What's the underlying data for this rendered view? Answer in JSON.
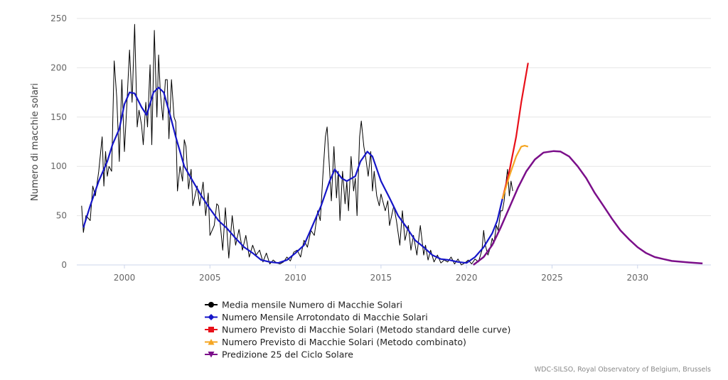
{
  "chart_data": {
    "type": "line",
    "title": "",
    "xlabel": "",
    "ylabel": "Numero di macchie solari",
    "xlim": [
      1997,
      2034.5
    ],
    "ylim": [
      0,
      250
    ],
    "x_ticks": [
      "2000",
      "2005",
      "2010",
      "2015",
      "2020",
      "2025",
      "2030"
    ],
    "y_ticks": [
      "0",
      "50",
      "100",
      "150",
      "200",
      "250"
    ],
    "grid": true,
    "legend_position": "bottom",
    "series": [
      {
        "name": "Media mensile Numero di Macchie Solari",
        "color": "#000000",
        "marker": "circle",
        "width": 1,
        "points": [
          [
            1997.5,
            60
          ],
          [
            1997.6,
            33
          ],
          [
            1997.75,
            50
          ],
          [
            1998,
            45
          ],
          [
            1998.15,
            80
          ],
          [
            1998.3,
            70
          ],
          [
            1998.5,
            95
          ],
          [
            1998.7,
            130
          ],
          [
            1998.8,
            80
          ],
          [
            1998.9,
            115
          ],
          [
            1999,
            90
          ],
          [
            1999.1,
            100
          ],
          [
            1999.25,
            95
          ],
          [
            1999.4,
            207
          ],
          [
            1999.55,
            170
          ],
          [
            1999.7,
            105
          ],
          [
            1999.85,
            188
          ],
          [
            2000,
            115
          ],
          [
            2000.15,
            165
          ],
          [
            2000.3,
            218
          ],
          [
            2000.45,
            165
          ],
          [
            2000.6,
            244
          ],
          [
            2000.75,
            140
          ],
          [
            2000.85,
            157
          ],
          [
            2001,
            142
          ],
          [
            2001.1,
            122
          ],
          [
            2001.25,
            165
          ],
          [
            2001.35,
            140
          ],
          [
            2001.5,
            203
          ],
          [
            2001.6,
            122
          ],
          [
            2001.75,
            238
          ],
          [
            2001.9,
            150
          ],
          [
            2002,
            213
          ],
          [
            2002.1,
            175
          ],
          [
            2002.25,
            147
          ],
          [
            2002.4,
            188
          ],
          [
            2002.5,
            188
          ],
          [
            2002.6,
            128
          ],
          [
            2002.75,
            188
          ],
          [
            2002.9,
            150
          ],
          [
            2003,
            145
          ],
          [
            2003.1,
            75
          ],
          [
            2003.25,
            100
          ],
          [
            2003.4,
            85
          ],
          [
            2003.5,
            127
          ],
          [
            2003.6,
            120
          ],
          [
            2003.75,
            77
          ],
          [
            2003.9,
            97
          ],
          [
            2004,
            60
          ],
          [
            2004.25,
            80
          ],
          [
            2004.4,
            60
          ],
          [
            2004.6,
            84
          ],
          [
            2004.75,
            50
          ],
          [
            2004.9,
            73
          ],
          [
            2005,
            30
          ],
          [
            2005.25,
            40
          ],
          [
            2005.4,
            62
          ],
          [
            2005.5,
            60
          ],
          [
            2005.75,
            15
          ],
          [
            2005.9,
            58
          ],
          [
            2006.1,
            7
          ],
          [
            2006.3,
            50
          ],
          [
            2006.5,
            20
          ],
          [
            2006.7,
            36
          ],
          [
            2006.9,
            15
          ],
          [
            2007.1,
            30
          ],
          [
            2007.3,
            8
          ],
          [
            2007.5,
            20
          ],
          [
            2007.7,
            10
          ],
          [
            2007.9,
            15
          ],
          [
            2008.1,
            3
          ],
          [
            2008.3,
            12
          ],
          [
            2008.5,
            1
          ],
          [
            2008.7,
            5
          ],
          [
            2008.9,
            2
          ],
          [
            2009.1,
            1
          ],
          [
            2009.3,
            3
          ],
          [
            2009.5,
            8
          ],
          [
            2009.7,
            4
          ],
          [
            2009.9,
            13
          ],
          [
            2010.1,
            15
          ],
          [
            2010.3,
            8
          ],
          [
            2010.5,
            25
          ],
          [
            2010.7,
            18
          ],
          [
            2010.9,
            35
          ],
          [
            2011.1,
            30
          ],
          [
            2011.3,
            55
          ],
          [
            2011.45,
            45
          ],
          [
            2011.6,
            90
          ],
          [
            2011.75,
            130
          ],
          [
            2011.85,
            140
          ],
          [
            2012,
            95
          ],
          [
            2012.1,
            65
          ],
          [
            2012.25,
            120
          ],
          [
            2012.4,
            68
          ],
          [
            2012.5,
            95
          ],
          [
            2012.6,
            45
          ],
          [
            2012.75,
            95
          ],
          [
            2012.9,
            62
          ],
          [
            2013,
            85
          ],
          [
            2013.1,
            55
          ],
          [
            2013.25,
            110
          ],
          [
            2013.4,
            75
          ],
          [
            2013.5,
            88
          ],
          [
            2013.6,
            50
          ],
          [
            2013.75,
            130
          ],
          [
            2013.85,
            146
          ],
          [
            2014,
            120
          ],
          [
            2014.1,
            110
          ],
          [
            2014.25,
            90
          ],
          [
            2014.4,
            115
          ],
          [
            2014.5,
            75
          ],
          [
            2014.6,
            95
          ],
          [
            2014.75,
            70
          ],
          [
            2014.9,
            60
          ],
          [
            2015,
            72
          ],
          [
            2015.25,
            55
          ],
          [
            2015.4,
            65
          ],
          [
            2015.5,
            40
          ],
          [
            2015.75,
            60
          ],
          [
            2015.9,
            45
          ],
          [
            2016.1,
            20
          ],
          [
            2016.25,
            55
          ],
          [
            2016.4,
            25
          ],
          [
            2016.6,
            40
          ],
          [
            2016.75,
            15
          ],
          [
            2016.9,
            30
          ],
          [
            2017.1,
            10
          ],
          [
            2017.3,
            40
          ],
          [
            2017.5,
            10
          ],
          [
            2017.6,
            20
          ],
          [
            2017.75,
            5
          ],
          [
            2017.9,
            15
          ],
          [
            2018.1,
            3
          ],
          [
            2018.3,
            10
          ],
          [
            2018.5,
            2
          ],
          [
            2018.7,
            5
          ],
          [
            2018.9,
            3
          ],
          [
            2019.1,
            8
          ],
          [
            2019.3,
            1
          ],
          [
            2019.5,
            6
          ],
          [
            2019.7,
            0
          ],
          [
            2019.9,
            2
          ],
          [
            2020.1,
            5
          ],
          [
            2020.3,
            1
          ],
          [
            2020.5,
            6
          ],
          [
            2020.7,
            3
          ],
          [
            2020.9,
            15
          ],
          [
            2021,
            35
          ],
          [
            2021.1,
            20
          ],
          [
            2021.25,
            10
          ],
          [
            2021.4,
            18
          ],
          [
            2021.5,
            27
          ],
          [
            2021.6,
            22
          ],
          [
            2021.75,
            40
          ],
          [
            2021.85,
            35
          ],
          [
            2022,
            55
          ],
          [
            2022.1,
            55
          ],
          [
            2022.2,
            65
          ],
          [
            2022.3,
            82
          ],
          [
            2022.4,
            97
          ],
          [
            2022.5,
            70
          ],
          [
            2022.6,
            85
          ],
          [
            2022.7,
            75
          ]
        ]
      },
      {
        "name": "Numero Mensile Arrotondato di Macchie Solari",
        "color": "#1515c8",
        "marker": "diamond",
        "width": 2.2,
        "points": [
          [
            1997.6,
            38
          ],
          [
            1998,
            60
          ],
          [
            1998.5,
            85
          ],
          [
            1999,
            105
          ],
          [
            1999.3,
            122
          ],
          [
            1999.7,
            138
          ],
          [
            2000,
            163
          ],
          [
            2000.3,
            175
          ],
          [
            2000.6,
            174
          ],
          [
            2001,
            160
          ],
          [
            2001.3,
            152
          ],
          [
            2001.7,
            175
          ],
          [
            2002,
            180
          ],
          [
            2002.3,
            175
          ],
          [
            2002.7,
            150
          ],
          [
            2003,
            130
          ],
          [
            2003.5,
            100
          ],
          [
            2004,
            85
          ],
          [
            2004.5,
            70
          ],
          [
            2005,
            57
          ],
          [
            2005.5,
            45
          ],
          [
            2006,
            37
          ],
          [
            2006.5,
            27
          ],
          [
            2007,
            18
          ],
          [
            2007.5,
            12
          ],
          [
            2008,
            5
          ],
          [
            2008.5,
            3
          ],
          [
            2009,
            2
          ],
          [
            2009.5,
            5
          ],
          [
            2010,
            12
          ],
          [
            2010.5,
            20
          ],
          [
            2011,
            40
          ],
          [
            2011.5,
            60
          ],
          [
            2012,
            85
          ],
          [
            2012.3,
            97
          ],
          [
            2012.7,
            88
          ],
          [
            2013,
            85
          ],
          [
            2013.5,
            90
          ],
          [
            2013.8,
            105
          ],
          [
            2014.2,
            115
          ],
          [
            2014.5,
            110
          ],
          [
            2015,
            85
          ],
          [
            2015.5,
            68
          ],
          [
            2016,
            50
          ],
          [
            2016.5,
            38
          ],
          [
            2017,
            25
          ],
          [
            2017.5,
            18
          ],
          [
            2018,
            10
          ],
          [
            2018.5,
            6
          ],
          [
            2019,
            5
          ],
          [
            2019.5,
            3
          ],
          [
            2020,
            2
          ],
          [
            2020.5,
            8
          ],
          [
            2021,
            18
          ],
          [
            2021.5,
            32
          ],
          [
            2021.8,
            45
          ],
          [
            2022.1,
            67
          ]
        ]
      },
      {
        "name": "Numero Previsto di Macchie Solari (Metodo standard delle curve)",
        "color": "#e8101a",
        "marker": "square",
        "width": 2.2,
        "points": [
          [
            2022.1,
            67
          ],
          [
            2022.5,
            95
          ],
          [
            2022.9,
            130
          ],
          [
            2023.2,
            165
          ],
          [
            2023.6,
            205
          ]
        ]
      },
      {
        "name": "Numero Previsto di Macchie Solari (Metodo combinato)",
        "color": "#f5a623",
        "marker": "triangle",
        "width": 2.2,
        "points": [
          [
            2022.1,
            67
          ],
          [
            2022.5,
            90
          ],
          [
            2022.9,
            110
          ],
          [
            2023.2,
            120
          ],
          [
            2023.4,
            121
          ],
          [
            2023.6,
            120
          ]
        ]
      },
      {
        "name": "Predizione 25 del Ciclo Solare",
        "color": "#7b0f8a",
        "marker": "triangle-down",
        "width": 2.5,
        "points": [
          [
            2020.4,
            0
          ],
          [
            2021,
            8
          ],
          [
            2021.5,
            20
          ],
          [
            2022,
            38
          ],
          [
            2022.5,
            58
          ],
          [
            2023,
            78
          ],
          [
            2023.5,
            95
          ],
          [
            2024,
            107
          ],
          [
            2024.5,
            114
          ],
          [
            2025.1,
            115.5
          ],
          [
            2025.5,
            115
          ],
          [
            2026,
            110
          ],
          [
            2026.5,
            100
          ],
          [
            2027,
            88
          ],
          [
            2027.5,
            73
          ],
          [
            2028,
            60
          ],
          [
            2028.5,
            47
          ],
          [
            2029,
            35
          ],
          [
            2029.5,
            26
          ],
          [
            2030,
            18
          ],
          [
            2030.5,
            12
          ],
          [
            2031,
            8
          ],
          [
            2031.5,
            6
          ],
          [
            2032,
            4
          ],
          [
            2033,
            2.5
          ],
          [
            2033.8,
            1.5
          ]
        ]
      }
    ],
    "credit": "WDC-SILSO, Royal Observatory of Belgium, Brussels"
  }
}
